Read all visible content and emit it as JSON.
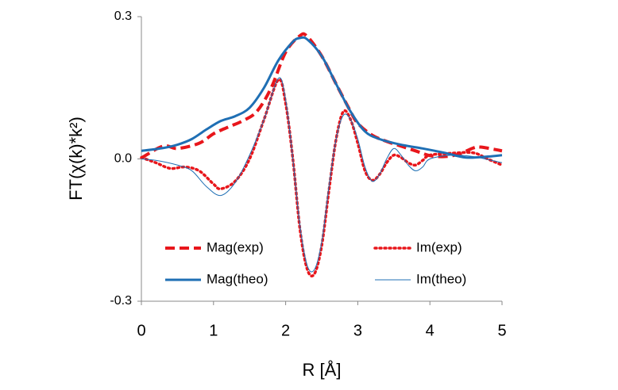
{
  "chart_data": {
    "type": "line",
    "x_label": "R [Å]",
    "y_label": "FT(χ(k)*k²)",
    "xlim": [
      0,
      5
    ],
    "xticks": [
      0,
      1,
      2,
      3,
      4,
      5
    ],
    "ylim": [
      -0.3,
      0.3
    ],
    "yticks": [
      -0.3,
      {
        "value": 0,
        "label": "0.0"
      },
      0.3
    ],
    "grid": false,
    "legend": "lower center",
    "series": [
      {
        "name": "Mag(exp)",
        "color": "#e8161b",
        "style": "dashed",
        "width": 4,
        "x": [
          0,
          0.3,
          0.5,
          0.8,
          1.0,
          1.2,
          1.4,
          1.6,
          1.8,
          2.0,
          2.2,
          2.3,
          2.5,
          2.7,
          2.9,
          3.0,
          3.2,
          3.4,
          3.6,
          3.8,
          4.0,
          4.2,
          4.4,
          4.6,
          4.7,
          4.9,
          5.0
        ],
        "values": [
          0.002,
          0.027,
          0.022,
          0.033,
          0.053,
          0.067,
          0.08,
          0.1,
          0.15,
          0.225,
          0.26,
          0.258,
          0.217,
          0.158,
          0.1,
          0.075,
          0.05,
          0.037,
          0.027,
          0.017,
          0.007,
          0.005,
          0.01,
          0.023,
          0.025,
          0.02,
          0.017
        ]
      },
      {
        "name": "Im(exp)",
        "color": "#e8161b",
        "style": "dotted",
        "width": 3.5,
        "x": [
          0,
          0.2,
          0.4,
          0.6,
          0.8,
          1.0,
          1.1,
          1.3,
          1.5,
          1.7,
          1.9,
          2.0,
          2.1,
          2.2,
          2.3,
          2.4,
          2.5,
          2.6,
          2.7,
          2.8,
          2.9,
          3.0,
          3.1,
          3.2,
          3.3,
          3.4,
          3.5,
          3.6,
          3.7,
          3.8,
          3.9,
          4.0,
          4.3,
          4.6,
          4.8,
          5.0
        ],
        "values": [
          0.003,
          -0.008,
          -0.02,
          -0.017,
          -0.025,
          -0.053,
          -0.063,
          -0.047,
          0,
          0.083,
          0.167,
          0.117,
          0,
          -0.15,
          -0.233,
          -0.242,
          -0.183,
          -0.067,
          0.042,
          0.1,
          0.083,
          0.033,
          -0.025,
          -0.045,
          -0.033,
          -0.008,
          0.008,
          0.003,
          -0.008,
          -0.013,
          -0.003,
          0.008,
          0.012,
          0.013,
          0,
          -0.013
        ]
      },
      {
        "name": "Mag(theo)",
        "color": "#1f6fb4",
        "style": "solid",
        "width": 3,
        "x": [
          0,
          0.3,
          0.5,
          0.7,
          0.9,
          1.1,
          1.3,
          1.5,
          1.7,
          1.9,
          2.1,
          2.2,
          2.3,
          2.5,
          2.7,
          2.9,
          3.1,
          3.3,
          3.6,
          3.9,
          4.2,
          4.5,
          4.8,
          5.0
        ],
        "values": [
          0.017,
          0.023,
          0.03,
          0.042,
          0.062,
          0.08,
          0.09,
          0.108,
          0.15,
          0.208,
          0.247,
          0.255,
          0.252,
          0.217,
          0.158,
          0.1,
          0.058,
          0.042,
          0.03,
          0.022,
          0.013,
          0.003,
          0.005,
          0.008
        ]
      },
      {
        "name": "Im(theo)",
        "color": "#1f6fb4",
        "style": "solid",
        "width": 1,
        "x": [
          0,
          0.2,
          0.5,
          0.7,
          0.9,
          1.1,
          1.3,
          1.5,
          1.7,
          1.9,
          2.0,
          2.1,
          2.2,
          2.3,
          2.4,
          2.5,
          2.6,
          2.7,
          2.8,
          2.9,
          3.0,
          3.1,
          3.2,
          3.3,
          3.4,
          3.5,
          3.6,
          3.7,
          3.8,
          3.9,
          4.0,
          4.3,
          4.6,
          5.0
        ],
        "values": [
          0,
          -0.003,
          -0.013,
          -0.025,
          -0.058,
          -0.077,
          -0.05,
          0.008,
          0.083,
          0.17,
          0.125,
          0,
          -0.142,
          -0.225,
          -0.233,
          -0.175,
          -0.058,
          0.042,
          0.092,
          0.083,
          0.042,
          -0.017,
          -0.047,
          -0.033,
          0,
          0.022,
          0.008,
          -0.013,
          -0.025,
          -0.017,
          0,
          0.008,
          0.005,
          -0.008
        ]
      }
    ]
  }
}
